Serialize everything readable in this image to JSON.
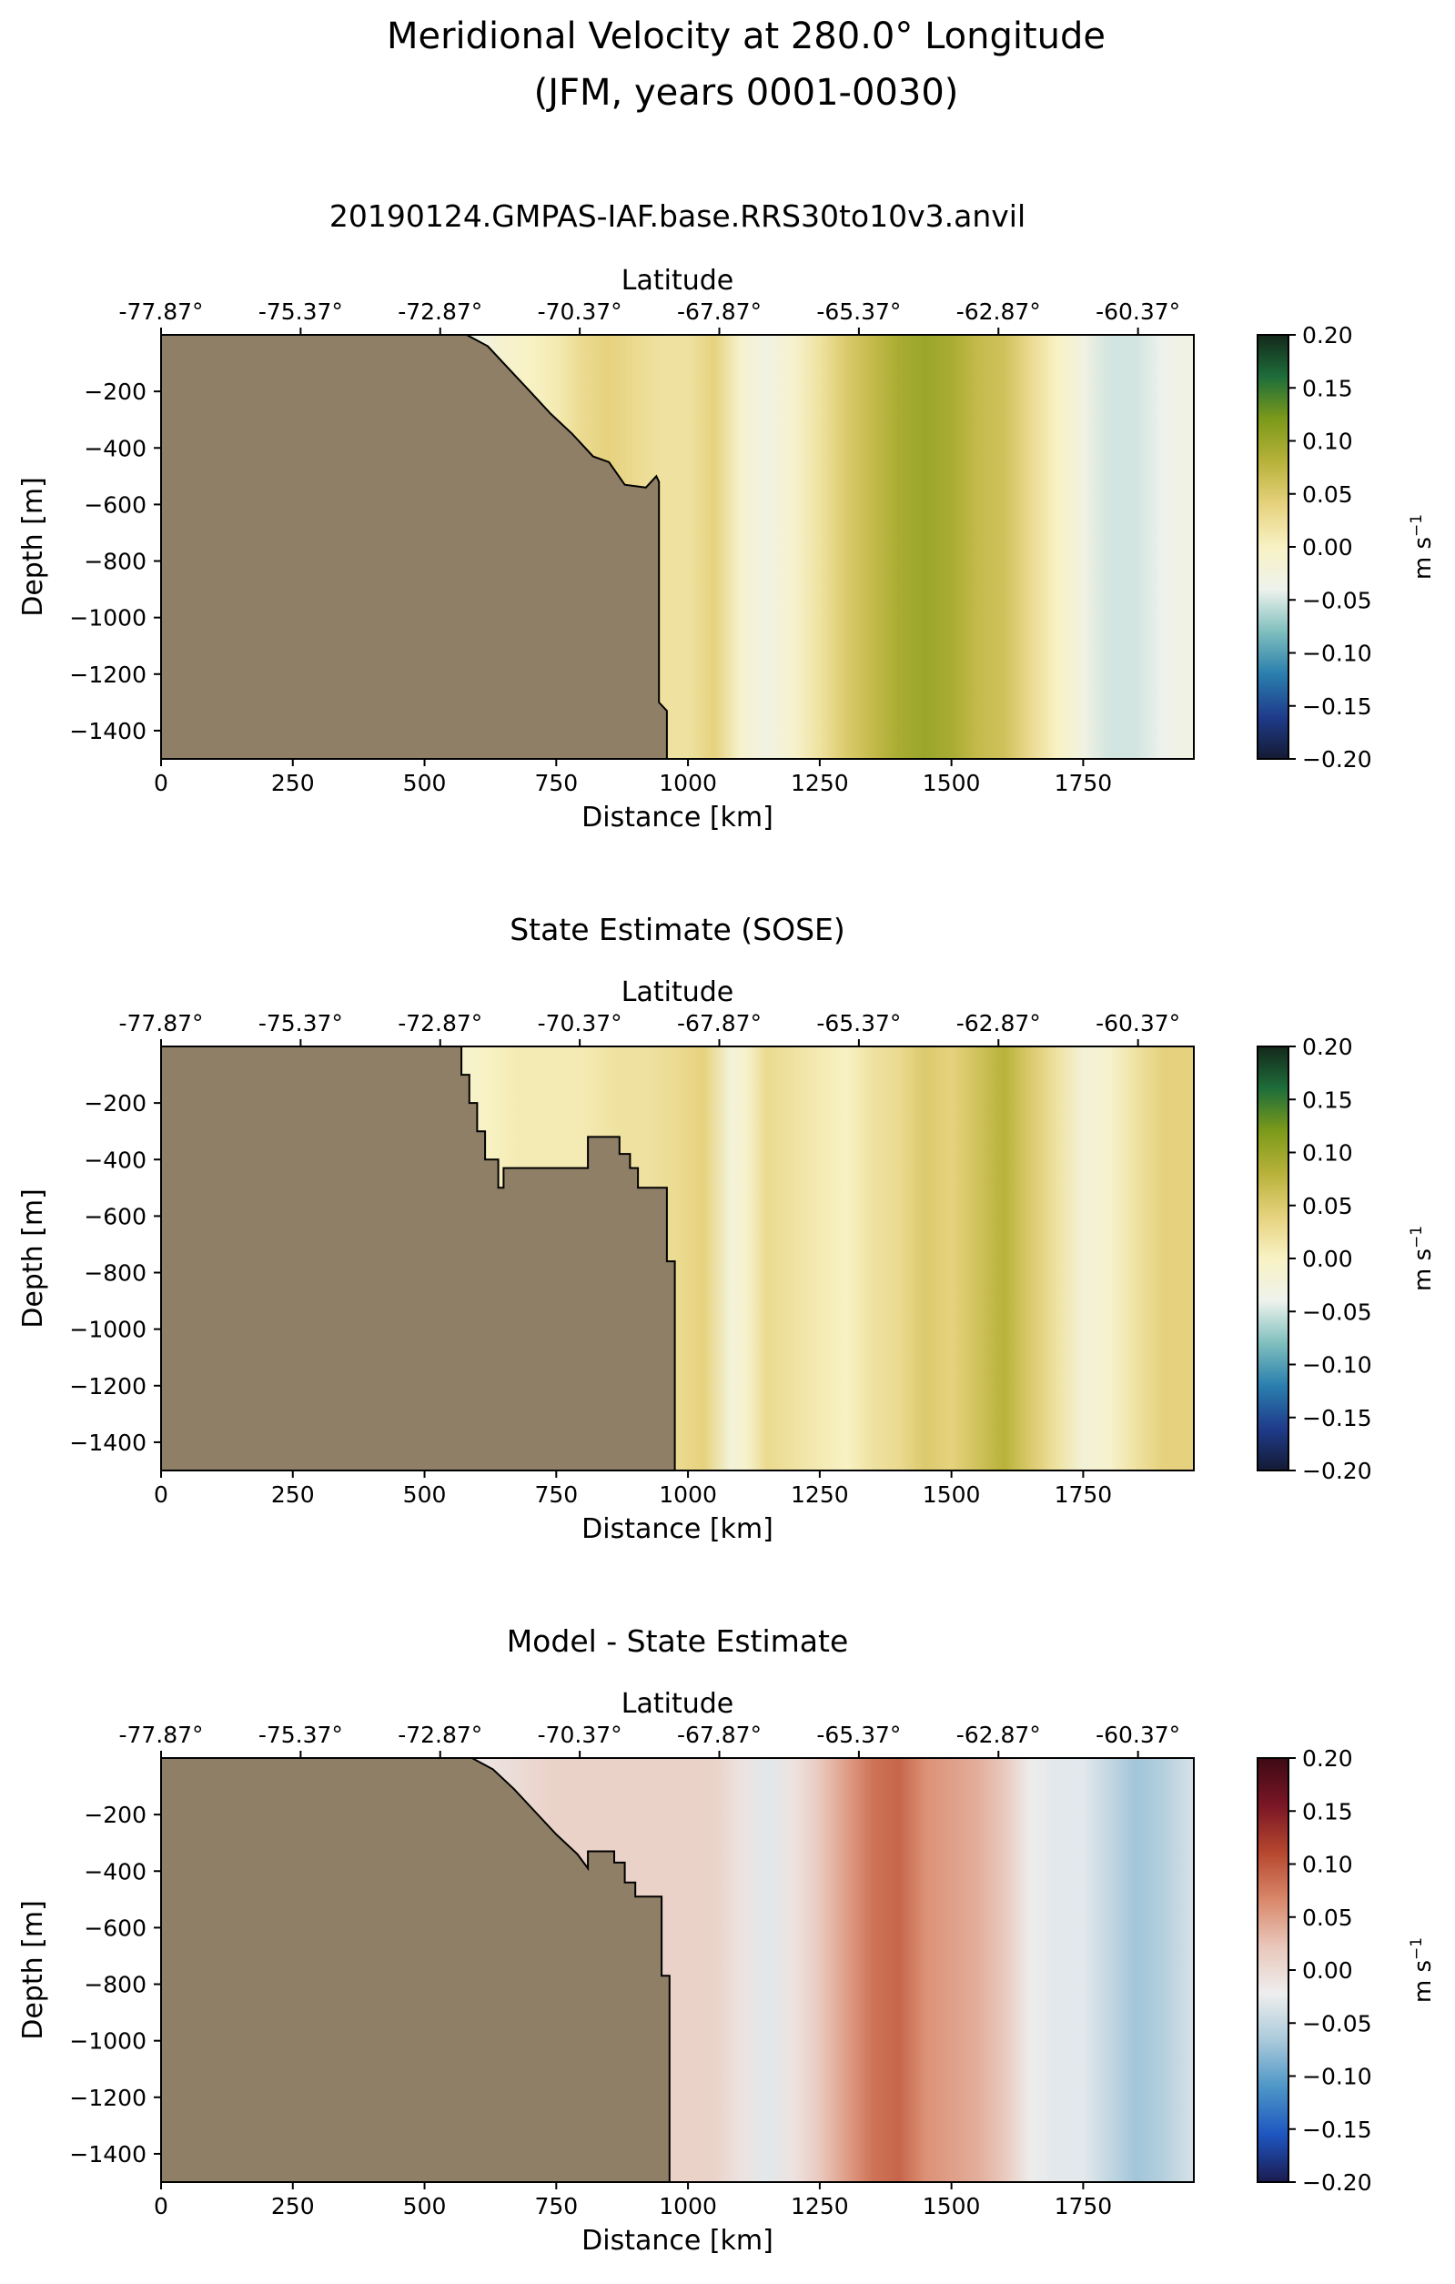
{
  "figure": {
    "title_line1": "Meridional Velocity at 280.0° Longitude",
    "title_line2": "(JFM, years 0001-0030)"
  },
  "colors": {
    "land": "#8f7f66",
    "cmap_velocity": [
      "#141a33",
      "#1f3c8c",
      "#2a7fae",
      "#7fbfbd",
      "#eef2ec",
      "#f8f2c4",
      "#e6d27e",
      "#b8b23a",
      "#7d9a1a",
      "#1e6e3a",
      "#14281a"
    ],
    "cmap_difference": [
      "#1b1b4f",
      "#1e55c0",
      "#4b95c6",
      "#a9c9da",
      "#eeeeee",
      "#e9c7bb",
      "#d9876a",
      "#b5472e",
      "#7a1626",
      "#3d0a14"
    ]
  },
  "panels": [
    {
      "title": "20190124.GMPAS-IAF.base.RRS30to10v3.anvil",
      "colormap": "velocity",
      "seafloor_step": false,
      "cbar_label": "m s",
      "cbar_label_sup": "−1"
    },
    {
      "title": "State Estimate (SOSE)",
      "colormap": "velocity",
      "seafloor_step": true,
      "cbar_label": "m s",
      "cbar_label_sup": "−1"
    },
    {
      "title": "Model - State Estimate",
      "colormap": "difference",
      "seafloor_step": true,
      "cbar_label": "m s",
      "cbar_label_sup": "−1"
    }
  ],
  "chart_data": [
    {
      "type": "heatmap",
      "title": "20190124.GMPAS-IAF.base.RRS30to10v3.anvil",
      "xlabel": "Distance [km]",
      "ylabel": "Depth [m]",
      "top_xlabel": "Latitude",
      "xlim": [
        0,
        1960
      ],
      "ylim": [
        -1500,
        0
      ],
      "xticks": [
        0,
        250,
        500,
        750,
        1000,
        1250,
        1500,
        1750
      ],
      "yticks": [
        -200,
        -400,
        -600,
        -800,
        -1000,
        -1200,
        -1400
      ],
      "top_xticks": [
        "-77.87°",
        "-75.37°",
        "-72.87°",
        "-70.37°",
        "-67.87°",
        "-65.37°",
        "-62.87°",
        "-60.37°"
      ],
      "clim": [
        -0.2,
        0.2
      ],
      "cbar_ticks": [
        "0.20",
        "0.15",
        "0.10",
        "0.05",
        "0.00",
        "−0.05",
        "−0.10",
        "−0.15",
        "−0.20"
      ],
      "columns": {
        "distance_km": [
          560,
          600,
          650,
          700,
          750,
          800,
          850,
          900,
          950,
          1000,
          1050,
          1100,
          1150,
          1200,
          1250,
          1300,
          1350,
          1400,
          1450,
          1500,
          1550,
          1600,
          1650,
          1700,
          1750,
          1800,
          1850,
          1900,
          1950
        ],
        "velocity": [
          -0.05,
          -0.03,
          -0.01,
          0.0,
          0.01,
          0.03,
          0.04,
          0.03,
          0.02,
          0.02,
          0.04,
          -0.01,
          -0.03,
          -0.01,
          0.02,
          0.05,
          0.07,
          0.09,
          0.1,
          0.09,
          0.07,
          0.06,
          0.03,
          0.0,
          -0.03,
          -0.05,
          -0.05,
          -0.04,
          -0.03
        ]
      },
      "seafloor": {
        "distance_km": [
          0,
          580,
          620,
          660,
          700,
          740,
          780,
          820,
          850,
          880,
          920,
          940,
          945,
          945,
          960,
          960,
          0
        ],
        "depth_m": [
          0,
          0,
          -40,
          -120,
          -200,
          -280,
          -350,
          -430,
          -450,
          -530,
          -540,
          -500,
          -520,
          -1300,
          -1330,
          -1500,
          -1500
        ]
      }
    },
    {
      "type": "heatmap",
      "title": "State Estimate (SOSE)",
      "xlabel": "Distance [km]",
      "ylabel": "Depth [m]",
      "top_xlabel": "Latitude",
      "xlim": [
        0,
        1960
      ],
      "ylim": [
        -1500,
        0
      ],
      "xticks": [
        0,
        250,
        500,
        750,
        1000,
        1250,
        1500,
        1750
      ],
      "yticks": [
        -200,
        -400,
        -600,
        -800,
        -1000,
        -1200,
        -1400
      ],
      "top_xticks": [
        "-77.87°",
        "-75.37°",
        "-72.87°",
        "-70.37°",
        "-67.87°",
        "-65.37°",
        "-62.87°",
        "-60.37°"
      ],
      "clim": [
        -0.2,
        0.2
      ],
      "cbar_ticks": [
        "0.20",
        "0.15",
        "0.10",
        "0.05",
        "0.00",
        "−0.05",
        "−0.10",
        "−0.15",
        "−0.20"
      ],
      "columns": {
        "distance_km": [
          570,
          620,
          680,
          740,
          800,
          860,
          920,
          980,
          1030,
          1080,
          1110,
          1150,
          1200,
          1250,
          1300,
          1350,
          1400,
          1450,
          1500,
          1550,
          1600,
          1650,
          1700,
          1750,
          1800,
          1850,
          1900,
          1950
        ],
        "velocity": [
          -0.01,
          0.0,
          0.01,
          0.01,
          0.01,
          0.02,
          0.02,
          0.03,
          0.04,
          -0.02,
          -0.01,
          0.03,
          0.02,
          0.01,
          0.0,
          0.02,
          0.03,
          0.05,
          0.04,
          0.06,
          0.08,
          0.05,
          0.02,
          -0.02,
          -0.01,
          0.02,
          0.04,
          0.04
        ]
      },
      "seafloor": {
        "distance_km": [
          0,
          570,
          570,
          585,
          585,
          600,
          600,
          615,
          615,
          640,
          640,
          650,
          650,
          700,
          700,
          810,
          810,
          870,
          870,
          890,
          890,
          905,
          905,
          960,
          960,
          975,
          975,
          0
        ],
        "depth_m": [
          0,
          0,
          -100,
          -100,
          -200,
          -200,
          -300,
          -300,
          -400,
          -400,
          -500,
          -500,
          -430,
          -430,
          -430,
          -430,
          -320,
          -320,
          -380,
          -380,
          -430,
          -430,
          -500,
          -500,
          -760,
          -760,
          -1500,
          -1500
        ]
      }
    },
    {
      "type": "heatmap",
      "title": "Model - State Estimate",
      "xlabel": "Distance [km]",
      "ylabel": "Depth [m]",
      "top_xlabel": "Latitude",
      "xlim": [
        0,
        1960
      ],
      "ylim": [
        -1500,
        0
      ],
      "xticks": [
        0,
        250,
        500,
        750,
        1000,
        1250,
        1500,
        1750
      ],
      "yticks": [
        -200,
        -400,
        -600,
        -800,
        -1000,
        -1200,
        -1400
      ],
      "top_xticks": [
        "-77.87°",
        "-75.37°",
        "-72.87°",
        "-70.37°",
        "-67.87°",
        "-65.37°",
        "-62.87°",
        "-60.37°"
      ],
      "clim": [
        -0.2,
        0.2
      ],
      "cbar_ticks": [
        "0.20",
        "0.15",
        "0.10",
        "0.05",
        "0.00",
        "−0.05",
        "−0.10",
        "−0.15",
        "−0.20"
      ],
      "columns": {
        "distance_km": [
          560,
          620,
          680,
          740,
          800,
          860,
          920,
          980,
          1050,
          1100,
          1150,
          1200,
          1250,
          1300,
          1350,
          1400,
          1450,
          1500,
          1550,
          1600,
          1650,
          1700,
          1750,
          1800,
          1850,
          1900,
          1950
        ],
        "velocity": [
          -0.03,
          -0.01,
          0.0,
          0.01,
          0.01,
          0.01,
          0.01,
          0.01,
          0.01,
          -0.01,
          -0.03,
          -0.01,
          0.02,
          0.05,
          0.08,
          0.09,
          0.06,
          0.05,
          0.04,
          0.02,
          -0.02,
          -0.03,
          -0.03,
          -0.05,
          -0.07,
          -0.06,
          -0.04
        ]
      },
      "seafloor": {
        "distance_km": [
          0,
          590,
          630,
          670,
          710,
          750,
          790,
          810,
          810,
          860,
          860,
          880,
          880,
          900,
          900,
          950,
          950,
          965,
          965,
          975,
          975,
          0
        ],
        "depth_m": [
          0,
          0,
          -40,
          -110,
          -190,
          -270,
          -340,
          -390,
          -330,
          -330,
          -370,
          -370,
          -440,
          -440,
          -490,
          -490,
          -770,
          -770,
          -1500,
          -1500,
          -1500,
          -1500
        ]
      }
    }
  ]
}
